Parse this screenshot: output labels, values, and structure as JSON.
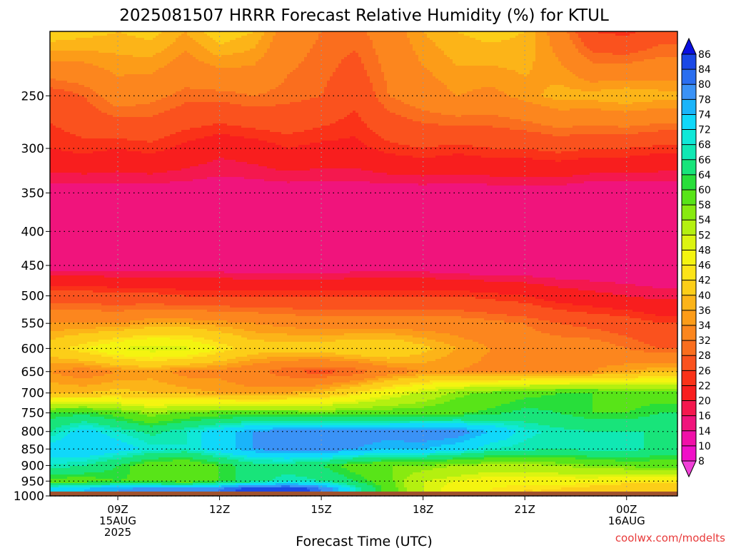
{
  "chart_data": {
    "type": "heatmap",
    "title": "2025081507 HRRR Forecast Relative Humidity (%) for KTUL",
    "xlabel": "Forecast Time (UTC)",
    "ylabel": "",
    "credit": "coolwx.com/modelts",
    "x_hours": [
      7,
      8,
      9,
      10,
      11,
      12,
      13,
      14,
      15,
      16,
      17,
      18,
      19,
      20,
      21,
      22,
      23,
      24,
      25
    ],
    "xlim": [
      7.0,
      25.5
    ],
    "x_ticks": [
      {
        "hour": 9,
        "labels": [
          "09Z",
          "15AUG",
          "2025"
        ]
      },
      {
        "hour": 12,
        "labels": [
          "12Z"
        ]
      },
      {
        "hour": 15,
        "labels": [
          "15Z"
        ]
      },
      {
        "hour": 18,
        "labels": [
          "18Z"
        ]
      },
      {
        "hour": 21,
        "labels": [
          "21Z"
        ]
      },
      {
        "hour": 24,
        "labels": [
          "00Z",
          "16AUG"
        ]
      }
    ],
    "y_levels_hpa": [
      200,
      250,
      300,
      350,
      400,
      450,
      500,
      550,
      600,
      650,
      700,
      750,
      800,
      850,
      900,
      950,
      975,
      1000
    ],
    "ylim": [
      200,
      1000
    ],
    "y_ticks": [
      250,
      300,
      350,
      400,
      450,
      500,
      550,
      600,
      650,
      700,
      750,
      800,
      850,
      900,
      950,
      1000
    ],
    "y_tick_labels": [
      "250",
      "300",
      "350",
      "400",
      "450",
      "500",
      "550",
      "600",
      "650",
      "700",
      "750",
      "800",
      "850",
      "900",
      "950",
      "1000"
    ],
    "surface_pressure_hpa": 985,
    "grid": true,
    "colorbar": {
      "labels": [
        "86",
        "84",
        "80",
        "78",
        "74",
        "72",
        "68",
        "66",
        "64",
        "60",
        "58",
        "54",
        "52",
        "48",
        "46",
        "42",
        "40",
        "36",
        "34",
        "32",
        "28",
        "26",
        "22",
        "20",
        "16",
        "14",
        "10",
        "8"
      ],
      "colors": [
        "#0a20d8",
        "#1a48e6",
        "#2a6ef0",
        "#3a92f6",
        "#1ab4fa",
        "#10d8fa",
        "#10e8d8",
        "#10e8b4",
        "#18e47a",
        "#28de3a",
        "#58e418",
        "#88ea10",
        "#b4f010",
        "#dcf410",
        "#f4f410",
        "#fce418",
        "#fcce18",
        "#fcb418",
        "#fc9c18",
        "#fc861e",
        "#fa6e1e",
        "#fa521e",
        "#fa3218",
        "#f81e1e",
        "#f4184e",
        "#f0147c",
        "#f010a8",
        "#f010c8"
      ],
      "extend": "both",
      "top_arrow_color": "#0a10e0",
      "bottom_arrow_color": "#f040d8"
    },
    "values": [
      [
        38,
        37,
        36,
        37,
        34,
        38,
        36,
        30,
        28,
        27,
        30,
        34,
        36,
        37,
        36,
        30,
        22,
        21,
        24
      ],
      [
        24,
        26,
        30,
        29,
        27,
        27,
        28,
        27,
        26,
        23,
        28,
        30,
        32,
        31,
        33,
        35,
        35,
        36,
        35
      ],
      [
        20,
        21,
        20,
        21,
        19,
        17,
        18,
        20,
        19,
        19,
        21,
        22,
        21,
        22,
        22,
        23,
        22,
        22,
        21
      ],
      [
        12,
        12,
        12,
        12,
        12,
        12,
        12,
        12,
        12,
        12,
        12,
        12,
        12,
        12,
        12,
        12,
        11,
        11,
        11
      ],
      [
        14,
        13,
        13,
        13,
        13,
        12,
        12,
        12,
        12,
        12,
        12,
        12,
        12,
        12,
        12,
        12,
        12,
        12,
        12
      ],
      [
        12,
        12,
        12,
        12,
        12,
        12,
        11,
        11,
        11,
        12,
        12,
        12,
        11,
        11,
        11,
        11,
        11,
        11,
        11
      ],
      [
        24,
        24,
        23,
        23,
        22,
        22,
        22,
        22,
        22,
        22,
        22,
        22,
        22,
        21,
        20,
        18,
        17,
        16,
        15
      ],
      [
        32,
        32,
        32,
        34,
        34,
        33,
        32,
        31,
        30,
        30,
        30,
        30,
        30,
        29,
        28,
        26,
        25,
        24,
        22
      ],
      [
        38,
        42,
        46,
        48,
        47,
        42,
        38,
        38,
        38,
        40,
        40,
        37,
        34,
        32,
        30,
        30,
        30,
        28,
        26
      ],
      [
        32,
        30,
        32,
        33,
        31,
        31,
        29,
        26,
        25,
        26,
        30,
        32,
        32,
        31,
        31,
        31,
        32,
        34,
        36
      ],
      [
        36,
        36,
        37,
        36,
        35,
        34,
        33,
        34,
        36,
        40,
        45,
        49,
        53,
        55,
        57,
        58,
        58,
        56,
        56
      ],
      [
        58,
        59,
        56,
        52,
        55,
        56,
        56,
        56,
        55,
        56,
        56,
        56,
        57,
        59,
        61,
        60,
        58,
        58,
        60
      ],
      [
        64,
        70,
        66,
        63,
        66,
        70,
        74,
        76,
        76,
        76,
        76,
        77,
        76,
        72,
        67,
        65,
        64,
        64,
        64
      ],
      [
        70,
        72,
        70,
        67,
        66,
        70,
        74,
        76,
        76,
        74,
        72,
        72,
        70,
        66,
        65,
        64,
        65,
        66,
        62
      ],
      [
        66,
        64,
        60,
        55,
        54,
        58,
        62,
        62,
        60,
        56,
        54,
        54,
        52,
        51,
        51,
        52,
        54,
        55,
        56
      ],
      [
        56,
        56,
        58,
        57,
        55,
        58,
        62,
        66,
        64,
        60,
        55,
        48,
        46,
        44,
        44,
        44,
        44,
        42,
        41
      ],
      [
        70,
        72,
        74,
        75,
        76,
        78,
        82,
        84,
        78,
        66,
        56,
        48,
        44,
        42,
        40,
        40,
        38,
        36,
        38
      ],
      [
        70,
        72,
        74,
        75,
        76,
        78,
        82,
        84,
        78,
        66,
        56,
        48,
        44,
        42,
        40,
        40,
        38,
        36,
        38
      ]
    ]
  }
}
